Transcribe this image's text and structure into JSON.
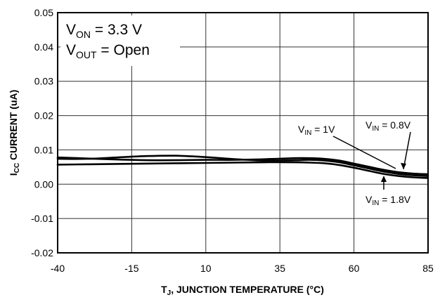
{
  "chart_data": {
    "type": "line",
    "xlabel": {
      "main": "T",
      "sub": "J",
      "rest": ", JUNCTION TEMPERATURE (°C)"
    },
    "ylabel": {
      "main": "I",
      "sub": "CC",
      "rest": " CURRENT (uA)"
    },
    "xlim": [
      -40,
      85
    ],
    "ylim": [
      -0.02,
      0.05
    ],
    "x_ticks": [
      -40,
      -15,
      10,
      35,
      60,
      85
    ],
    "x_tick_labels": [
      "-40",
      "-15",
      "10",
      "35",
      "60",
      "85"
    ],
    "y_ticks": [
      0.05,
      0.04,
      0.03,
      0.02,
      0.01,
      0.0,
      -0.01,
      -0.02
    ],
    "y_tick_labels": [
      "0.05",
      "0.04",
      "0.03",
      "0.02",
      "0.01",
      "0.00",
      "-0.01",
      "-0.02"
    ],
    "grid": true,
    "conditions": [
      {
        "main": "V",
        "sub": "ON",
        "rest": " = 3.3 V"
      },
      {
        "main": "V",
        "sub": "OUT",
        "rest": " = Open"
      }
    ],
    "series": [
      {
        "name": "V_IN = 0.8V",
        "label": {
          "main": "V",
          "sub": "IN",
          "rest": " = 0.8V"
        },
        "x": [
          -40,
          -30,
          -20,
          -10,
          0,
          10,
          20,
          30,
          40,
          45,
          50,
          55,
          60,
          65,
          70,
          75,
          80,
          85
        ],
        "y": [
          0.0078,
          0.0075,
          0.0072,
          0.007,
          0.007,
          0.0071,
          0.0071,
          0.0073,
          0.0076,
          0.0076,
          0.0074,
          0.0069,
          0.006,
          0.0051,
          0.0042,
          0.0035,
          0.0031,
          0.0029
        ]
      },
      {
        "name": "V_IN = 1V",
        "label": {
          "main": "V",
          "sub": "IN",
          "rest": " = 1V"
        },
        "x": [
          -40,
          -30,
          -20,
          -10,
          0,
          10,
          20,
          30,
          40,
          45,
          50,
          55,
          60,
          65,
          70,
          75,
          80,
          85
        ],
        "y": [
          0.0074,
          0.0074,
          0.0078,
          0.0082,
          0.0083,
          0.0079,
          0.0073,
          0.0069,
          0.007,
          0.0071,
          0.0069,
          0.0064,
          0.0055,
          0.0046,
          0.0037,
          0.003,
          0.0026,
          0.0024
        ]
      },
      {
        "name": "V_IN = 1.8V",
        "label": {
          "main": "V",
          "sub": "IN",
          "rest": " = 1.8V"
        },
        "x": [
          -40,
          -30,
          -20,
          -10,
          0,
          10,
          20,
          30,
          40,
          45,
          50,
          55,
          60,
          65,
          70,
          75,
          80,
          85
        ],
        "y": [
          0.0057,
          0.0058,
          0.0059,
          0.006,
          0.0061,
          0.0062,
          0.0063,
          0.0064,
          0.0064,
          0.0063,
          0.0061,
          0.0056,
          0.0048,
          0.0039,
          0.003,
          0.0024,
          0.002,
          0.0018
        ]
      }
    ]
  }
}
